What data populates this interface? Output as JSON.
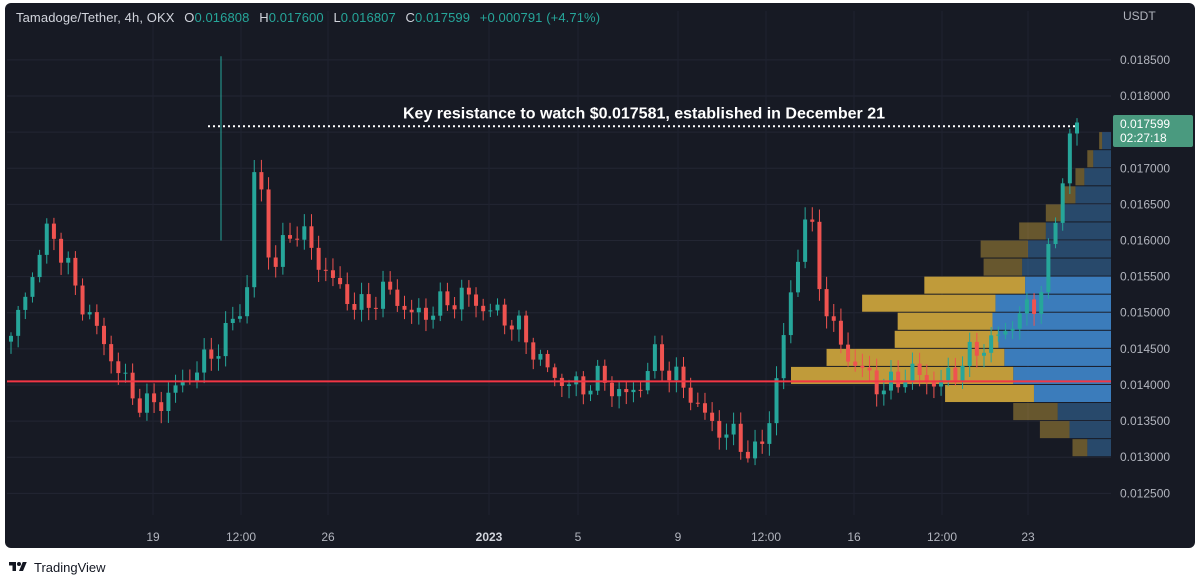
{
  "legend": {
    "symbol": "Tamadoge/Tether, 4h, OKX",
    "open_label": "O",
    "open": "0.016808",
    "high_label": "H",
    "high": "0.017600",
    "low_label": "L",
    "low": "0.016807",
    "close_label": "C",
    "close": "0.017599",
    "change": "+0.000791 (+4.71%)"
  },
  "price_axis": {
    "currency": "USDT",
    "ticks": [
      "0.018500",
      "0.018000",
      "0.017500",
      "0.017000",
      "0.016500",
      "0.016000",
      "0.015500",
      "0.015000",
      "0.014500",
      "0.014000",
      "0.013500",
      "0.013000",
      "0.012500"
    ],
    "current_price": "0.017599",
    "countdown": "02:27:18"
  },
  "time_axis": {
    "ticks": [
      "19",
      "12:00",
      "26",
      "2023",
      "5",
      "9",
      "12:00",
      "16",
      "12:00",
      "23"
    ],
    "bold": [
      "2023"
    ]
  },
  "annotation": {
    "text": "Key resistance to watch $0.017581, established in December 21"
  },
  "branding": {
    "name": "TradingView"
  },
  "colors": {
    "background": "#171a24",
    "up": "#26a69a",
    "down": "#ef5350",
    "support_line": "#f23645",
    "vp_up": "#3d82c4",
    "vp_down": "#c9a23c",
    "price_label": "#4a9a7f"
  },
  "chart_data": {
    "type": "candlestick",
    "symbol": "Tamadoge/Tether",
    "interval": "4h",
    "exchange": "OKX",
    "ylim": [
      0.0122,
      0.0189
    ],
    "yticks": [
      0.0185,
      0.018,
      0.0175,
      0.017,
      0.0165,
      0.016,
      0.0155,
      0.015,
      0.0145,
      0.014,
      0.0135,
      0.013,
      0.0125
    ],
    "resistance": 0.017581,
    "support": 0.01405,
    "last_price": 0.017599,
    "approx_closes": [
      0.0146,
      0.015,
      0.0153,
      0.0156,
      0.0159,
      0.0162,
      0.016,
      0.0157,
      0.01545,
      0.0152,
      0.015,
      0.0148,
      0.0146,
      0.0144,
      0.0142,
      0.014,
      0.01385,
      0.01375,
      0.0137,
      0.01375,
      0.0138,
      0.0139,
      0.014,
      0.0141,
      0.0142,
      0.0143,
      0.0144,
      0.01455,
      0.0147,
      0.0149,
      0.0151,
      0.0154,
      0.0175,
      0.0162,
      0.0156,
      0.0158,
      0.016,
      0.0162,
      0.0161,
      0.0159,
      0.0157,
      0.0156,
      0.01545,
      0.0153,
      0.0152,
      0.0151,
      0.01505,
      0.01515,
      0.01525,
      0.01535,
      0.0152,
      0.0151,
      0.015,
      0.01495,
      0.015,
      0.01505,
      0.0151,
      0.01515,
      0.0152,
      0.01525,
      0.0152,
      0.0151,
      0.01505,
      0.015,
      0.01495,
      0.0149,
      0.0148,
      0.01465,
      0.0145,
      0.01435,
      0.0142,
      0.0141,
      0.01405,
      0.014,
      0.01395,
      0.014,
      0.01405,
      0.0141,
      0.014,
      0.0139,
      0.01385,
      0.0139,
      0.014,
      0.0142,
      0.0144,
      0.0143,
      0.01415,
      0.01405,
      0.01395,
      0.0138,
      0.01365,
      0.0135,
      0.0134,
      0.01335,
      0.0133,
      0.0132,
      0.0131,
      0.01305,
      0.0132,
      0.0136,
      0.0142,
      0.0148,
      0.0154,
      0.0161,
      0.0165,
      0.0156,
      0.0152,
      0.0148,
      0.0146,
      0.0144,
      0.0143,
      0.0142,
      0.0141,
      0.014,
      0.01395,
      0.014,
      0.0141,
      0.0142,
      0.01415,
      0.0141,
      0.01405,
      0.014,
      0.0141,
      0.0142,
      0.0143,
      0.0144,
      0.0145,
      0.01455,
      0.0146,
      0.0147,
      0.0148,
      0.0149,
      0.015,
      0.0151,
      0.0152,
      0.0156,
      0.0162,
      0.0168,
      0.0174,
      0.0176
    ],
    "volume_profile": {
      "bins_low": [
        0.013,
        0.01325,
        0.0135,
        0.01375,
        0.014,
        0.01425,
        0.0145,
        0.01475,
        0.015,
        0.01525,
        0.0155,
        0.01575,
        0.016,
        0.01625,
        0.0165,
        0.01675,
        0.017,
        0.01725
      ],
      "up_volume": [
        0.8,
        1.4,
        1.8,
        2.6,
        3.3,
        3.6,
        3.8,
        4.0,
        3.9,
        2.9,
        3.0,
        2.8,
        2.2,
        1.6,
        1.2,
        0.9,
        0.6,
        0.3
      ],
      "down_volume": [
        0.5,
        1.0,
        1.5,
        3.0,
        7.5,
        6.0,
        3.5,
        3.2,
        4.5,
        3.4,
        1.3,
        1.6,
        0.9,
        0.6,
        0.4,
        0.3,
        0.2,
        0.1
      ]
    }
  }
}
